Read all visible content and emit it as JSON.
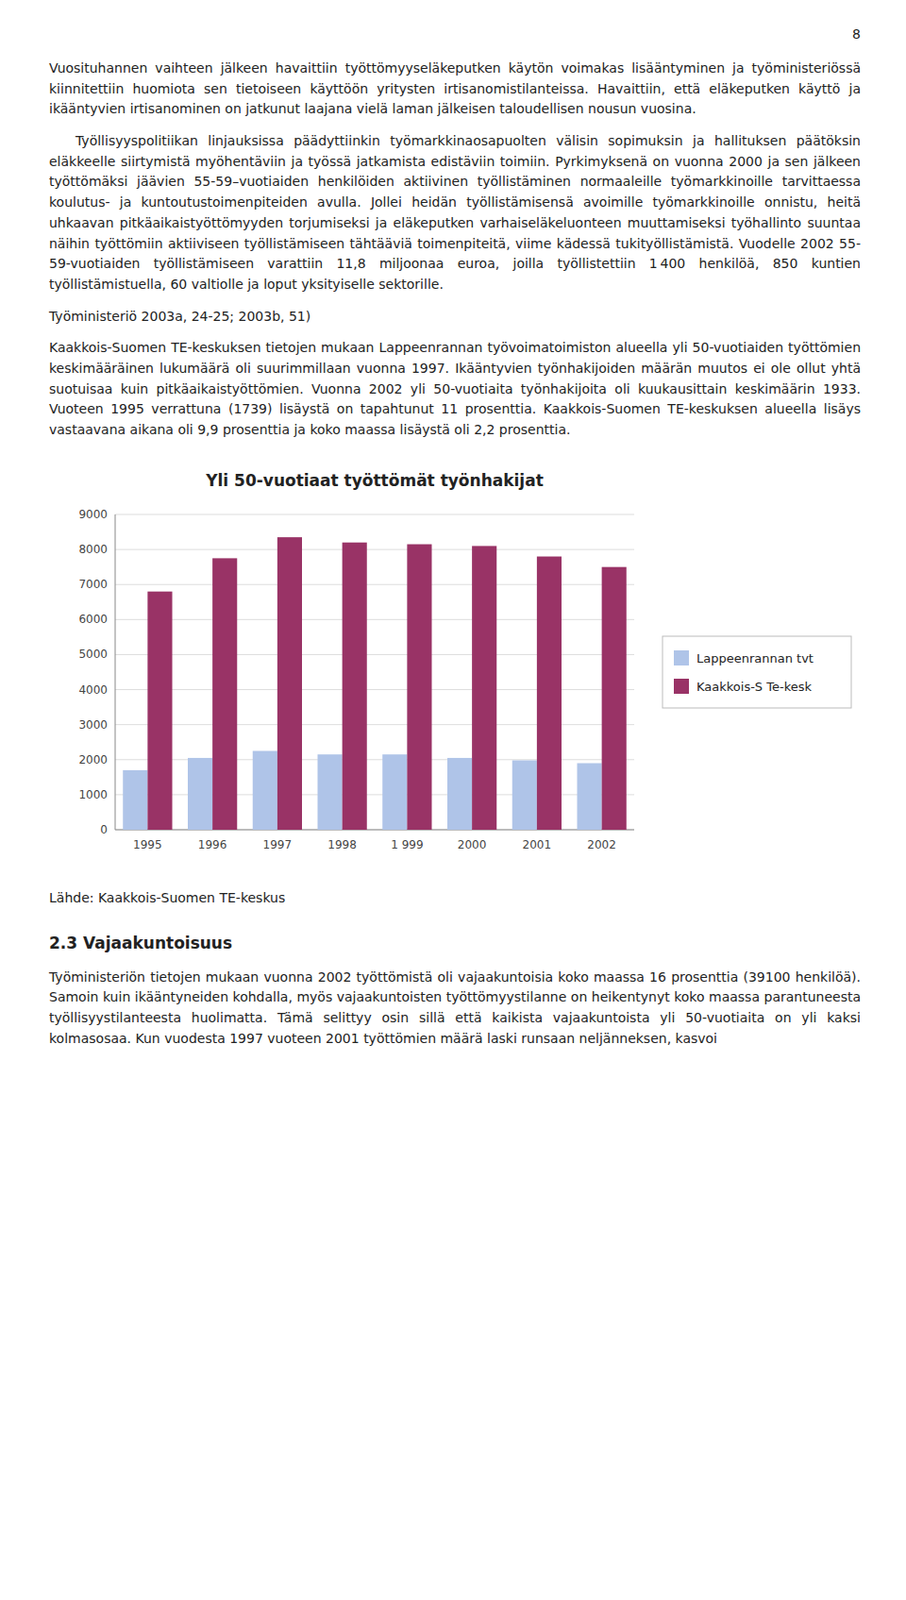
{
  "page_number": "8",
  "paragraphs_before": [
    "Vuosituhannen vaihteen jälkeen havaittiin työttömyyseläkeputken käytön voimakas lisääntyminen ja työministeriössä kiinnitettiin huomiota sen tietoiseen käyttöön yritysten irtisanomistilanteissa. Havaittiin, että eläkeputken käyttö ja ikääntyvien irtisanominen on jatkunut laajana vielä laman jälkeisen taloudellisen nousun vuosina.",
    "Työllisyyspolitiikan linjauksissa päädyttiinkin työmarkkinaosapuolten välisin sopimuksin ja hallituksen päätöksin eläkkeelle siirtymistä myöhentäviin ja työssä jatkamista edistäviin toimiin. Pyrkimyksenä on vuonna 2000 ja sen jälkeen työttömäksi jäävien 55-59–vuotiaiden henkilöiden aktiivinen työllistäminen normaaleille työmarkkinoille tarvittaessa koulutus- ja kuntoutustoimenpiteiden avulla. Jollei heidän työllistämisensä avoimille työmarkkinoille onnistu, heitä uhkaavan pitkäaikaistyöttömyyden torjumiseksi ja eläkeputken varhaiseläkeluonteen muuttamiseksi työhallinto suuntaa näihin työttömiin aktiiviseen työllistämiseen tähtääviä toimenpiteitä, viime kädessä tukityöllistämistä. Vuodelle 2002 55-59-vuotiaiden työllistämiseen varattiin 11,8 miljoonaa euroa, joilla työllistettiin 1 400 henkilöä, 850 kuntien työllistämistuella, 60 valtiolle ja loput yksityiselle sektorille.",
    "Työministeriö 2003a, 24-25; 2003b, 51)",
    "Kaakkois-Suomen TE-keskuksen tietojen mukaan Lappeenrannan työvoimatoimiston alueella yli 50-vuotiaiden työttömien keskimääräinen lukumäärä oli suurimmillaan vuonna 1997. Ikääntyvien työnhakijoiden määrän muutos ei ole ollut yhtä suotuisaa kuin pitkäaikaistyöttömien. Vuonna 2002 yli 50-vuotiaita työnhakijoita oli kuukausittain keskimäärin 1933. Vuoteen 1995 verrattuna (1739) lisäystä on tapahtunut 11 prosenttia. Kaakkois-Suomen TE-keskuksen alueella lisäys vastaavana aikana oli 9,9 prosenttia ja koko maassa lisäystä oli 2,2 prosenttia."
  ],
  "chart_data": {
    "type": "bar",
    "title": "Yli 50-vuotiaat työttömät työnhakijat",
    "categories": [
      "1995",
      "1996",
      "1997",
      "1998",
      "1 999",
      "2000",
      "2001",
      "2002"
    ],
    "series": [
      {
        "name": "Lappeenrannan tvt",
        "color": "#afc4e8",
        "values": [
          1700,
          2050,
          2250,
          2150,
          2150,
          2050,
          1980,
          1900
        ]
      },
      {
        "name": "Kaakkois-S Te-kesk",
        "color": "#993366",
        "values": [
          6800,
          7750,
          8350,
          8200,
          8150,
          8100,
          7800,
          7500
        ]
      }
    ],
    "ylim": [
      0,
      9000
    ],
    "yticks": [
      0,
      1000,
      2000,
      3000,
      4000,
      5000,
      6000,
      7000,
      8000,
      9000
    ],
    "grid": true,
    "legend": "right"
  },
  "source": "Lähde: Kaakkois-Suomen TE-keskus",
  "section_title": "2.3 Vajaakuntoisuus",
  "paragraphs_after": [
    "Työministeriön tietojen mukaan vuonna 2002 työttömistä oli vajaakuntoisia koko maassa 16 prosenttia (39100 henkilöä). Samoin kuin ikääntyneiden kohdalla, myös vajaakuntoisten työttömyystilanne on heikentynyt koko maassa parantuneesta työllisyystilanteesta huolimatta. Tämä selittyy osin sillä että kaikista vajaakuntoista yli 50-vuotiaita on yli kaksi kolmasosaa. Kun vuodesta 1997 vuoteen 2001 työttömien määrä laski runsaan neljänneksen, kasvoi"
  ]
}
